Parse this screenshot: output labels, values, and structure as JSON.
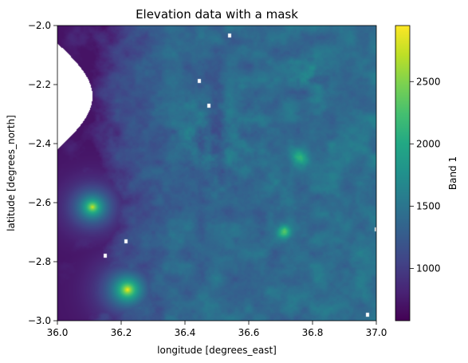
{
  "chart_data": {
    "type": "heatmap",
    "title": "Elevation data with a mask",
    "xlabel": "longitude [degrees_east]",
    "ylabel": "latitude [degrees_north]",
    "xlim": [
      36.0,
      37.0
    ],
    "ylim": [
      -3.0,
      -2.0
    ],
    "x_ticks": [
      {
        "value": 36.0,
        "label": "36.0"
      },
      {
        "value": 36.2,
        "label": "36.2"
      },
      {
        "value": 36.4,
        "label": "36.4"
      },
      {
        "value": 36.6,
        "label": "36.6"
      },
      {
        "value": 36.8,
        "label": "36.8"
      },
      {
        "value": 37.0,
        "label": "37.0"
      }
    ],
    "y_ticks": [
      {
        "value": -2.0,
        "label": "−2.0"
      },
      {
        "value": -2.2,
        "label": "−2.2"
      },
      {
        "value": -2.4,
        "label": "−2.4"
      },
      {
        "value": -2.6,
        "label": "−2.6"
      },
      {
        "value": -2.8,
        "label": "−2.8"
      },
      {
        "value": -3.0,
        "label": "−3.0"
      }
    ],
    "colorbar": {
      "label": "Band 1",
      "colormap": "viridis",
      "range": [
        580,
        2950
      ],
      "ticks": [
        {
          "value": 1000,
          "label": "1000"
        },
        {
          "value": 1500,
          "label": "1500"
        },
        {
          "value": 2000,
          "label": "2000"
        },
        {
          "value": 2500,
          "label": "2500"
        }
      ]
    },
    "features": [
      {
        "kind": "peak",
        "lon": 36.11,
        "lat": -2.615,
        "elevation": 2800,
        "spread": 0.065
      },
      {
        "kind": "peak",
        "lon": 36.22,
        "lat": -2.895,
        "elevation": 2950,
        "spread": 0.075
      },
      {
        "kind": "ridge",
        "lon": 36.76,
        "lat": -2.45,
        "elevation": 2200,
        "spread": 0.03
      },
      {
        "kind": "ridge",
        "lon": 36.71,
        "lat": -2.7,
        "elevation": 2200,
        "spread": 0.02
      },
      {
        "kind": "highland",
        "lon": 36.48,
        "lat": -2.4,
        "elevation": 1800,
        "spread": 0.12
      },
      {
        "kind": "highland",
        "lon": 36.78,
        "lat": -2.17,
        "elevation": 1800,
        "spread": 0.06
      }
    ],
    "masked": "white regions = no data (mask); large masked area at upper-left around lon 36.00–36.11, lat −2.06 to −2.42"
  }
}
